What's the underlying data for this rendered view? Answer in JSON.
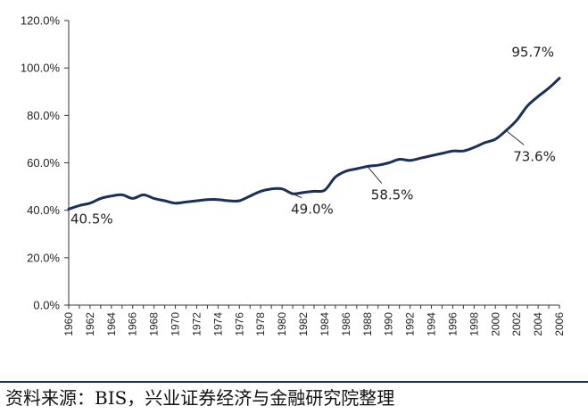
{
  "source_note": "资料来源：BIS，兴业证券经济与金融研究院整理",
  "chart_data": {
    "type": "line",
    "title": "",
    "xlabel": "",
    "ylabel": "",
    "ylim": [
      0,
      120
    ],
    "yticks": [
      "0.0%",
      "20.0%",
      "40.0%",
      "60.0%",
      "80.0%",
      "100.0%",
      "120.0%"
    ],
    "xticks": [
      "1960",
      "1962",
      "1964",
      "1966",
      "1968",
      "1970",
      "1972",
      "1974",
      "1976",
      "1978",
      "1980",
      "1982",
      "1984",
      "1986",
      "1988",
      "1990",
      "1992",
      "1994",
      "1996",
      "1998",
      "2000",
      "2002",
      "2004",
      "2006"
    ],
    "line_color": "#1a2f5a",
    "grid": false,
    "x": [
      1960,
      1961,
      1962,
      1963,
      1964,
      1965,
      1966,
      1967,
      1968,
      1969,
      1970,
      1971,
      1972,
      1973,
      1974,
      1975,
      1976,
      1977,
      1978,
      1979,
      1980,
      1981,
      1982,
      1983,
      1984,
      1985,
      1986,
      1987,
      1988,
      1989,
      1990,
      1991,
      1992,
      1993,
      1994,
      1995,
      1996,
      1997,
      1998,
      1999,
      2000,
      2001,
      2002,
      2003,
      2004,
      2005,
      2006
    ],
    "series": [
      {
        "values": [
          40.5,
          42.0,
          43.0,
          45.0,
          46.0,
          46.5,
          45.0,
          46.5,
          45.0,
          44.0,
          43.0,
          43.5,
          44.0,
          44.5,
          44.5,
          44.0,
          44.0,
          46.0,
          48.0,
          49.0,
          49.0,
          47.0,
          47.5,
          48.0,
          48.5,
          54.0,
          56.5,
          57.5,
          58.5,
          59.0,
          60.0,
          61.5,
          61.0,
          62.0,
          63.0,
          64.0,
          65.0,
          65.0,
          66.5,
          68.5,
          70.0,
          73.6,
          78.0,
          84.0,
          88.0,
          91.5,
          95.7
        ]
      }
    ],
    "annotations": [
      {
        "text": "40.5%",
        "x": 1960,
        "y": 40.5
      },
      {
        "text": "49.0%",
        "x": 1980,
        "y": 49.0
      },
      {
        "text": "58.5%",
        "x": 1988,
        "y": 58.5
      },
      {
        "text": "73.6%",
        "x": 2001,
        "y": 73.6
      },
      {
        "text": "95.7%",
        "x": 2006,
        "y": 95.7
      }
    ]
  }
}
